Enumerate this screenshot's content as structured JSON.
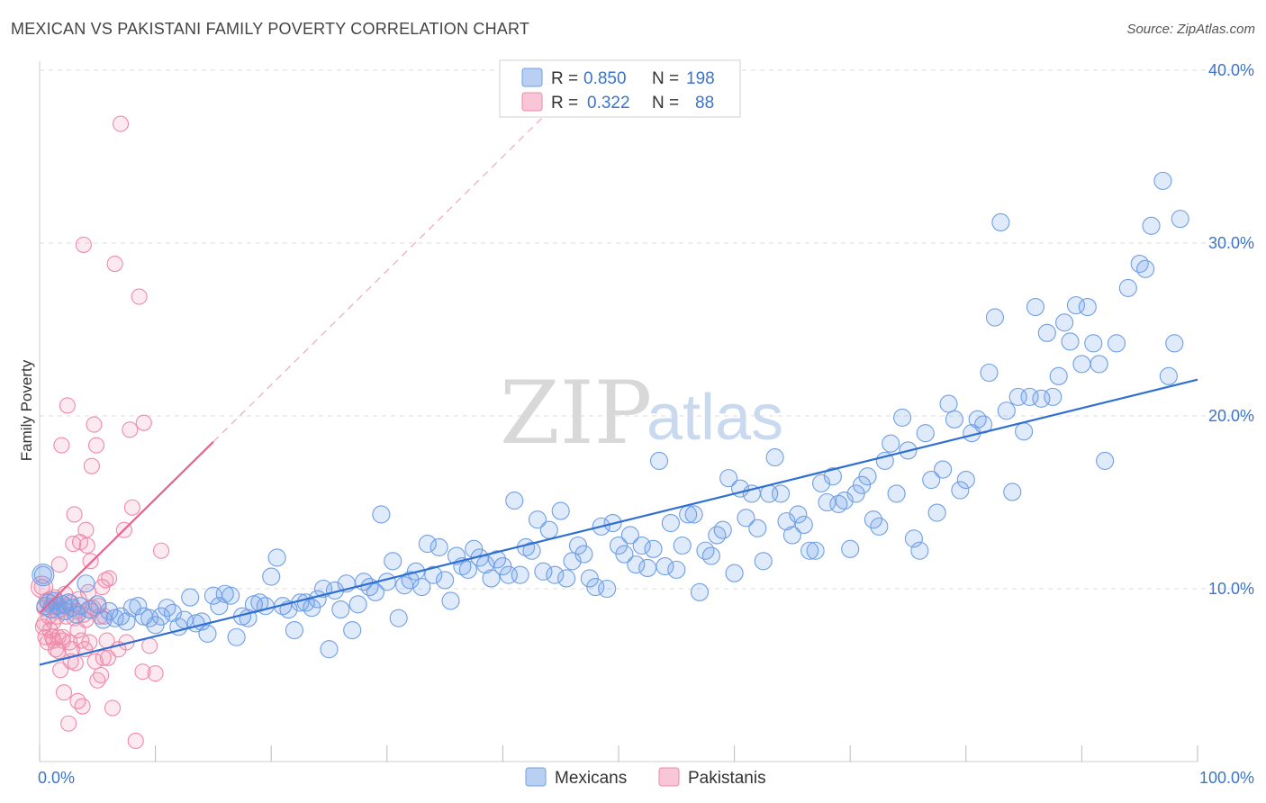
{
  "title": "MEXICAN VS PAKISTANI FAMILY POVERTY CORRELATION CHART",
  "source": "Source: ZipAtlas.com",
  "watermark": {
    "zip": "ZIP",
    "atlas": "atlas"
  },
  "colors": {
    "mexicans": "#6f9fe6",
    "mexicans_line": "#2f6fd0",
    "pakistanis": "#f08aaa",
    "pakistanis_line": "#e8628e",
    "axis_text": "#3b74c8"
  },
  "legend_top": {
    "rows": [
      {
        "r_label": "R = ",
        "r_value": "0.850",
        "n_label": "N = ",
        "n_value": "198"
      },
      {
        "r_label": "R = ",
        "r_value": "0.322",
        "n_label": "N = ",
        "n_value": "88"
      }
    ]
  },
  "legend_bottom": [
    "Mexicans",
    "Pakistanis"
  ],
  "chart_data": {
    "type": "scatter",
    "title": "MEXICAN VS PAKISTANI FAMILY POVERTY CORRELATION CHART",
    "xlabel": "",
    "ylabel": "Family Poverty",
    "x_tick_labels": [
      "0.0%",
      "100.0%"
    ],
    "y_tick_labels": [
      "10.0%",
      "20.0%",
      "30.0%",
      "40.0%"
    ],
    "xlim": [
      0,
      100
    ],
    "ylim": [
      0,
      40
    ],
    "grid": true,
    "legend_placement": "bottom-center",
    "series": [
      {
        "name": "Mexicans",
        "r": 0.85,
        "n": 198,
        "trend": {
          "x": [
            0,
            100
          ],
          "y": [
            5.6,
            22.1
          ]
        },
        "points": [
          [
            0.3,
            10.8
          ],
          [
            0.5,
            9.0
          ],
          [
            0.8,
            9.2
          ],
          [
            1.0,
            8.8
          ],
          [
            1.3,
            9.3
          ],
          [
            1.6,
            9.0
          ],
          [
            2.0,
            9.1
          ],
          [
            2.2,
            8.7
          ],
          [
            2.5,
            9.2
          ],
          [
            2.8,
            8.9
          ],
          [
            3.2,
            8.5
          ],
          [
            3.5,
            9.0
          ],
          [
            4.0,
            10.3
          ],
          [
            4.3,
            8.8
          ],
          [
            5.0,
            9.1
          ],
          [
            5.5,
            8.2
          ],
          [
            6.0,
            8.7
          ],
          [
            6.5,
            8.3
          ],
          [
            7.0,
            8.4
          ],
          [
            7.5,
            8.1
          ],
          [
            8.0,
            8.9
          ],
          [
            8.5,
            9.0
          ],
          [
            9.0,
            8.4
          ],
          [
            9.5,
            8.3
          ],
          [
            10.0,
            7.9
          ],
          [
            10.5,
            8.4
          ],
          [
            11.0,
            8.9
          ],
          [
            11.5,
            8.6
          ],
          [
            12.0,
            7.8
          ],
          [
            12.5,
            8.2
          ],
          [
            13.0,
            9.5
          ],
          [
            13.5,
            8.0
          ],
          [
            14.0,
            8.1
          ],
          [
            14.5,
            7.4
          ],
          [
            15.0,
            9.6
          ],
          [
            15.5,
            9.0
          ],
          [
            16.0,
            9.7
          ],
          [
            16.5,
            9.6
          ],
          [
            17.0,
            7.2
          ],
          [
            17.5,
            8.4
          ],
          [
            18.0,
            8.3
          ],
          [
            18.5,
            9.1
          ],
          [
            19.0,
            9.2
          ],
          [
            19.5,
            9.0
          ],
          [
            20.0,
            10.7
          ],
          [
            20.5,
            11.8
          ],
          [
            21.0,
            9.0
          ],
          [
            21.5,
            8.8
          ],
          [
            22.0,
            7.6
          ],
          [
            22.5,
            9.2
          ],
          [
            23.0,
            9.2
          ],
          [
            23.5,
            8.9
          ],
          [
            24.0,
            9.4
          ],
          [
            24.5,
            10.0
          ],
          [
            25.0,
            6.5
          ],
          [
            25.5,
            9.9
          ],
          [
            26.0,
            8.8
          ],
          [
            26.5,
            10.3
          ],
          [
            27.0,
            7.6
          ],
          [
            27.5,
            9.1
          ],
          [
            28.0,
            10.4
          ],
          [
            28.5,
            10.1
          ],
          [
            29.0,
            9.8
          ],
          [
            29.5,
            14.3
          ],
          [
            30.0,
            10.4
          ],
          [
            30.5,
            11.6
          ],
          [
            31.0,
            8.3
          ],
          [
            31.5,
            10.2
          ],
          [
            32.0,
            10.5
          ],
          [
            32.5,
            11.0
          ],
          [
            33.0,
            10.1
          ],
          [
            33.5,
            12.6
          ],
          [
            34.0,
            10.8
          ],
          [
            34.5,
            12.4
          ],
          [
            35.0,
            10.5
          ],
          [
            35.5,
            9.3
          ],
          [
            36.0,
            11.9
          ],
          [
            36.5,
            11.3
          ],
          [
            37.0,
            11.1
          ],
          [
            37.5,
            12.3
          ],
          [
            38.0,
            11.8
          ],
          [
            38.5,
            11.4
          ],
          [
            39.0,
            10.6
          ],
          [
            39.5,
            11.7
          ],
          [
            40.0,
            11.3
          ],
          [
            40.5,
            10.8
          ],
          [
            41.0,
            15.1
          ],
          [
            41.5,
            10.8
          ],
          [
            42.0,
            12.4
          ],
          [
            42.5,
            12.2
          ],
          [
            43.0,
            14.0
          ],
          [
            43.5,
            11.0
          ],
          [
            44.0,
            13.4
          ],
          [
            44.5,
            10.8
          ],
          [
            45.0,
            14.5
          ],
          [
            45.5,
            10.6
          ],
          [
            46.0,
            11.6
          ],
          [
            46.5,
            12.5
          ],
          [
            47.0,
            12.0
          ],
          [
            47.5,
            10.6
          ],
          [
            48.0,
            10.1
          ],
          [
            48.5,
            13.6
          ],
          [
            49.0,
            10.0
          ],
          [
            49.5,
            13.8
          ],
          [
            50.0,
            12.5
          ],
          [
            50.5,
            12.0
          ],
          [
            51.0,
            13.1
          ],
          [
            51.5,
            11.4
          ],
          [
            52.0,
            12.5
          ],
          [
            52.5,
            11.2
          ],
          [
            53.0,
            12.3
          ],
          [
            53.5,
            17.4
          ],
          [
            54.0,
            11.3
          ],
          [
            54.5,
            13.8
          ],
          [
            55.0,
            11.1
          ],
          [
            55.5,
            12.5
          ],
          [
            56.0,
            14.3
          ],
          [
            56.5,
            14.3
          ],
          [
            57.0,
            9.8
          ],
          [
            57.5,
            12.2
          ],
          [
            58.0,
            11.9
          ],
          [
            58.5,
            13.1
          ],
          [
            59.0,
            13.4
          ],
          [
            59.5,
            16.4
          ],
          [
            60.0,
            10.9
          ],
          [
            60.5,
            15.8
          ],
          [
            61.0,
            14.1
          ],
          [
            61.5,
            15.5
          ],
          [
            62.0,
            13.5
          ],
          [
            62.5,
            11.6
          ],
          [
            63.0,
            15.5
          ],
          [
            63.5,
            17.6
          ],
          [
            64.0,
            15.5
          ],
          [
            64.5,
            13.9
          ],
          [
            65.0,
            13.1
          ],
          [
            65.5,
            14.3
          ],
          [
            66.0,
            13.7
          ],
          [
            66.5,
            12.2
          ],
          [
            67.0,
            12.2
          ],
          [
            67.5,
            16.1
          ],
          [
            68.0,
            15.0
          ],
          [
            68.5,
            16.5
          ],
          [
            69.0,
            14.9
          ],
          [
            69.5,
            15.1
          ],
          [
            70.0,
            12.3
          ],
          [
            70.5,
            15.5
          ],
          [
            71.0,
            16.0
          ],
          [
            71.5,
            16.5
          ],
          [
            72.0,
            14.0
          ],
          [
            72.5,
            13.6
          ],
          [
            73.0,
            17.4
          ],
          [
            73.5,
            18.4
          ],
          [
            74.0,
            15.5
          ],
          [
            74.5,
            19.9
          ],
          [
            75.0,
            18.0
          ],
          [
            75.5,
            12.9
          ],
          [
            76.0,
            12.2
          ],
          [
            76.5,
            19.0
          ],
          [
            77.0,
            16.3
          ],
          [
            77.5,
            14.4
          ],
          [
            78.0,
            16.9
          ],
          [
            78.5,
            20.7
          ],
          [
            79.0,
            19.8
          ],
          [
            79.5,
            15.7
          ],
          [
            80.0,
            16.3
          ],
          [
            80.5,
            19.0
          ],
          [
            81.0,
            19.8
          ],
          [
            81.5,
            19.5
          ],
          [
            82.0,
            22.5
          ],
          [
            82.5,
            25.7
          ],
          [
            83.0,
            31.2
          ],
          [
            83.5,
            20.3
          ],
          [
            84.0,
            15.6
          ],
          [
            84.5,
            21.1
          ],
          [
            85.0,
            19.1
          ],
          [
            85.5,
            21.1
          ],
          [
            86.0,
            26.3
          ],
          [
            86.5,
            21.0
          ],
          [
            87.0,
            24.8
          ],
          [
            87.5,
            21.1
          ],
          [
            88.0,
            22.3
          ],
          [
            88.5,
            25.4
          ],
          [
            89.0,
            24.3
          ],
          [
            89.5,
            26.4
          ],
          [
            90.0,
            23.0
          ],
          [
            90.5,
            26.3
          ],
          [
            91.0,
            24.2
          ],
          [
            91.5,
            23.0
          ],
          [
            92.0,
            17.4
          ],
          [
            93.0,
            24.2
          ],
          [
            94.0,
            27.4
          ],
          [
            95.0,
            28.8
          ],
          [
            95.5,
            28.5
          ],
          [
            96.0,
            31.0
          ],
          [
            97.0,
            33.6
          ],
          [
            97.5,
            22.3
          ],
          [
            98.0,
            24.2
          ],
          [
            98.5,
            31.4
          ]
        ]
      },
      {
        "name": "Pakistanis",
        "r": 0.322,
        "n": 88,
        "trend": {
          "x": [
            0,
            15
          ],
          "y": [
            8.6,
            18.5
          ]
        },
        "points": [
          [
            0.2,
            10.1
          ],
          [
            0.3,
            7.8
          ],
          [
            0.4,
            8.9
          ],
          [
            0.5,
            7.2
          ],
          [
            0.6,
            9.3
          ],
          [
            0.7,
            6.9
          ],
          [
            0.8,
            8.4
          ],
          [
            0.9,
            7.6
          ],
          [
            1.0,
            9.0
          ],
          [
            1.1,
            7.2
          ],
          [
            1.2,
            8.1
          ],
          [
            1.3,
            9.5
          ],
          [
            1.4,
            6.5
          ],
          [
            1.5,
            8.4
          ],
          [
            1.6,
            7.2
          ],
          [
            1.7,
            11.4
          ],
          [
            1.8,
            5.3
          ],
          [
            1.9,
            18.3
          ],
          [
            2.0,
            7.2
          ],
          [
            2.1,
            4.0
          ],
          [
            2.2,
            9.0
          ],
          [
            2.3,
            8.4
          ],
          [
            2.4,
            20.6
          ],
          [
            2.5,
            2.2
          ],
          [
            2.6,
            6.9
          ],
          [
            2.7,
            9.2
          ],
          [
            2.8,
            6.5
          ],
          [
            2.9,
            12.6
          ],
          [
            3.0,
            14.3
          ],
          [
            3.1,
            5.7
          ],
          [
            3.2,
            8.7
          ],
          [
            3.3,
            3.5
          ],
          [
            3.4,
            9.4
          ],
          [
            3.5,
            12.7
          ],
          [
            3.6,
            7.0
          ],
          [
            3.7,
            3.2
          ],
          [
            3.8,
            8.5
          ],
          [
            3.9,
            6.5
          ],
          [
            4.0,
            13.4
          ],
          [
            4.1,
            12.5
          ],
          [
            4.2,
            9.8
          ],
          [
            4.3,
            6.9
          ],
          [
            4.4,
            11.6
          ],
          [
            4.5,
            17.1
          ],
          [
            4.6,
            8.9
          ],
          [
            4.7,
            19.5
          ],
          [
            4.8,
            5.8
          ],
          [
            4.9,
            18.3
          ],
          [
            5.0,
            4.7
          ],
          [
            5.1,
            9.0
          ],
          [
            5.2,
            8.4
          ],
          [
            5.3,
            5.0
          ],
          [
            5.4,
            10.1
          ],
          [
            5.5,
            6.0
          ],
          [
            5.6,
            8.4
          ],
          [
            5.7,
            10.5
          ],
          [
            5.8,
            7.0
          ],
          [
            6.0,
            10.6
          ],
          [
            6.3,
            3.1
          ],
          [
            6.5,
            28.8
          ],
          [
            6.8,
            6.5
          ],
          [
            7.0,
            36.9
          ],
          [
            7.3,
            13.4
          ],
          [
            7.5,
            6.9
          ],
          [
            7.8,
            19.2
          ],
          [
            8.0,
            14.7
          ],
          [
            8.3,
            1.2
          ],
          [
            8.6,
            26.9
          ],
          [
            8.9,
            5.2
          ],
          [
            9.0,
            19.6
          ],
          [
            9.5,
            6.7
          ],
          [
            10.0,
            5.1
          ],
          [
            10.5,
            12.2
          ],
          [
            3.8,
            29.9
          ],
          [
            1.5,
            8.7
          ],
          [
            2.0,
            7.0
          ],
          [
            0.9,
            9.4
          ],
          [
            1.6,
            6.4
          ],
          [
            2.7,
            5.8
          ],
          [
            3.3,
            7.6
          ],
          [
            4.0,
            8.2
          ],
          [
            1.2,
            7.0
          ],
          [
            0.4,
            8.0
          ],
          [
            2.2,
            9.7
          ],
          [
            1.8,
            8.8
          ],
          [
            3.0,
            8.3
          ],
          [
            4.5,
            8.7
          ],
          [
            5.9,
            6.0
          ]
        ]
      }
    ]
  }
}
